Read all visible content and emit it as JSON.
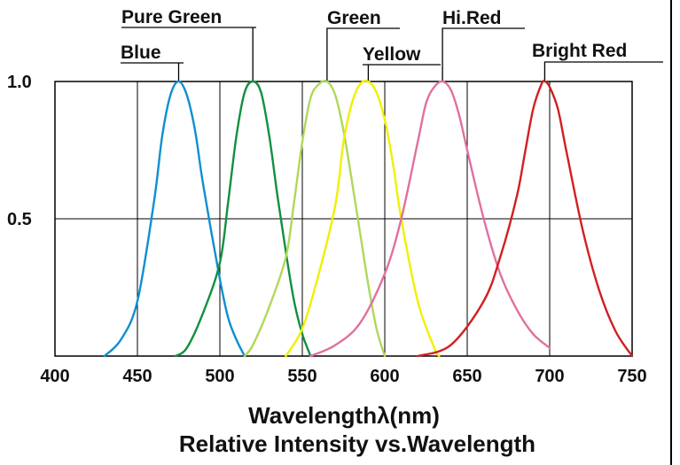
{
  "chart_data": {
    "type": "line",
    "title": "Relative Intensity vs.Wavelength",
    "xlabel": "Wavelengthλ(nm)",
    "ylabel": "",
    "xlim": [
      400,
      750
    ],
    "ylim": [
      0,
      1.0
    ],
    "x_ticks": [
      "400",
      "450",
      "500",
      "550",
      "600",
      "650",
      "700",
      "750"
    ],
    "y_ticks": [
      "0.5",
      "1.0"
    ],
    "grid": true,
    "series": [
      {
        "name": "Blue",
        "color": "#0e8fd0",
        "peak": 475,
        "x": [
          430,
          440,
          450,
          460,
          465,
          470,
          475,
          480,
          485,
          490,
          500,
          505,
          510,
          515
        ],
        "y": [
          0.0,
          0.06,
          0.2,
          0.56,
          0.8,
          0.95,
          1.0,
          0.95,
          0.82,
          0.62,
          0.28,
          0.14,
          0.06,
          0.0
        ]
      },
      {
        "name": "Pure Green",
        "color": "#109040",
        "peak": 520,
        "x": [
          473,
          480,
          490,
          500,
          505,
          510,
          515,
          520,
          525,
          530,
          535,
          540,
          545,
          550,
          555
        ],
        "y": [
          0.0,
          0.03,
          0.16,
          0.34,
          0.56,
          0.8,
          0.96,
          1.0,
          0.96,
          0.8,
          0.58,
          0.38,
          0.2,
          0.08,
          0.0
        ]
      },
      {
        "name": "Green",
        "color": "#b0d858",
        "peak": 565,
        "x": [
          515,
          520,
          530,
          540,
          545,
          550,
          555,
          560,
          565,
          570,
          575,
          580,
          585,
          590,
          595,
          600
        ],
        "y": [
          0.0,
          0.04,
          0.18,
          0.36,
          0.56,
          0.78,
          0.94,
          0.99,
          1.0,
          0.95,
          0.82,
          0.64,
          0.45,
          0.26,
          0.1,
          0.0
        ]
      },
      {
        "name": "Yellow",
        "color": "#f0f000",
        "peak": 590,
        "x": [
          540,
          550,
          560,
          570,
          575,
          580,
          585,
          590,
          595,
          600,
          605,
          610,
          620,
          630,
          633
        ],
        "y": [
          0.0,
          0.1,
          0.3,
          0.55,
          0.78,
          0.92,
          0.99,
          1.0,
          0.96,
          0.86,
          0.7,
          0.5,
          0.2,
          0.03,
          0.0
        ]
      },
      {
        "name": "Hi.Red",
        "color": "#e070a0",
        "peak": 635,
        "x": [
          555,
          570,
          585,
          600,
          610,
          620,
          625,
          630,
          635,
          640,
          645,
          650,
          660,
          670,
          680,
          690,
          700
        ],
        "y": [
          0.0,
          0.04,
          0.12,
          0.3,
          0.5,
          0.78,
          0.92,
          0.98,
          1.0,
          0.97,
          0.88,
          0.75,
          0.5,
          0.3,
          0.17,
          0.08,
          0.03
        ]
      },
      {
        "name": "Bright Red",
        "color": "#d02020",
        "peak": 697,
        "x": [
          620,
          640,
          660,
          670,
          680,
          685,
          690,
          695,
          697,
          700,
          705,
          710,
          720,
          730,
          740,
          750
        ],
        "y": [
          0.0,
          0.04,
          0.2,
          0.36,
          0.58,
          0.74,
          0.9,
          0.99,
          1.0,
          0.98,
          0.9,
          0.75,
          0.46,
          0.24,
          0.09,
          0.0
        ]
      }
    ]
  }
}
